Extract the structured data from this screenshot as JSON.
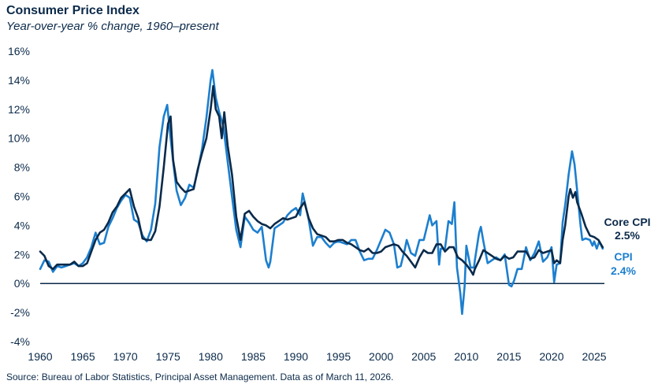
{
  "chart_data": {
    "type": "line",
    "title": "Consumer Price Index",
    "subtitle": "Year-over-year % change, 1960–present",
    "source": "Source: Bureau of Labor Statistics, Principal Asset Management. Data as of March 11, 2026.",
    "xlabel": "",
    "ylabel": "",
    "xlim": [
      1960,
      2026.2
    ],
    "ylim": [
      -4,
      16
    ],
    "x_ticks": [
      1960,
      1965,
      1970,
      1975,
      1980,
      1985,
      1990,
      1995,
      2000,
      2005,
      2010,
      2015,
      2020,
      2025
    ],
    "x_tick_labels": [
      "1960",
      "1965",
      "1970",
      "1975",
      "1980",
      "1985",
      "1990",
      "1995",
      "2000",
      "2005",
      "2010",
      "2015",
      "2020",
      "2025"
    ],
    "y_ticks": [
      -4,
      -2,
      0,
      2,
      4,
      6,
      8,
      10,
      12,
      14,
      16
    ],
    "y_tick_labels": [
      "-4%",
      "-2%",
      "0%",
      "2%",
      "4%",
      "6%",
      "8%",
      "10%",
      "12%",
      "14%",
      "16%"
    ],
    "grid": false,
    "colors": {
      "core": "#0b2a4a",
      "cpi": "#1c7fcf"
    },
    "series": [
      {
        "name": "Core CPI",
        "end_label": "Core CPI",
        "end_value_label": "2.5%",
        "color": "#0b2a4a",
        "points": [
          [
            1960.0,
            2.2
          ],
          [
            1960.5,
            1.9
          ],
          [
            1961.0,
            1.2
          ],
          [
            1961.5,
            1.0
          ],
          [
            1962.0,
            1.3
          ],
          [
            1962.5,
            1.3
          ],
          [
            1963.0,
            1.3
          ],
          [
            1963.5,
            1.3
          ],
          [
            1964.0,
            1.5
          ],
          [
            1964.5,
            1.2
          ],
          [
            1965.0,
            1.2
          ],
          [
            1965.5,
            1.4
          ],
          [
            1966.0,
            2.2
          ],
          [
            1966.5,
            3.0
          ],
          [
            1967.0,
            3.5
          ],
          [
            1967.5,
            3.7
          ],
          [
            1968.0,
            4.2
          ],
          [
            1968.5,
            4.9
          ],
          [
            1969.0,
            5.3
          ],
          [
            1969.5,
            5.9
          ],
          [
            1970.0,
            6.2
          ],
          [
            1970.5,
            6.5
          ],
          [
            1971.0,
            5.3
          ],
          [
            1971.5,
            4.5
          ],
          [
            1972.0,
            3.1
          ],
          [
            1972.5,
            3.0
          ],
          [
            1973.0,
            3.0
          ],
          [
            1973.5,
            3.6
          ],
          [
            1974.0,
            5.3
          ],
          [
            1974.5,
            8.0
          ],
          [
            1975.0,
            11.0
          ],
          [
            1975.3,
            11.5
          ],
          [
            1975.6,
            8.5
          ],
          [
            1976.0,
            7.0
          ],
          [
            1976.5,
            6.6
          ],
          [
            1977.0,
            6.3
          ],
          [
            1977.5,
            6.4
          ],
          [
            1978.0,
            6.5
          ],
          [
            1978.5,
            7.9
          ],
          [
            1979.0,
            9.0
          ],
          [
            1979.5,
            10.0
          ],
          [
            1980.0,
            12.0
          ],
          [
            1980.3,
            13.6
          ],
          [
            1980.6,
            12.0
          ],
          [
            1981.0,
            11.5
          ],
          [
            1981.3,
            10.0
          ],
          [
            1981.6,
            11.8
          ],
          [
            1982.0,
            9.5
          ],
          [
            1982.5,
            7.5
          ],
          [
            1983.0,
            4.6
          ],
          [
            1983.5,
            3.0
          ],
          [
            1984.0,
            4.8
          ],
          [
            1984.5,
            5.0
          ],
          [
            1985.0,
            4.6
          ],
          [
            1985.5,
            4.3
          ],
          [
            1986.0,
            4.1
          ],
          [
            1986.5,
            4.0
          ],
          [
            1987.0,
            3.8
          ],
          [
            1987.5,
            4.1
          ],
          [
            1988.0,
            4.3
          ],
          [
            1988.5,
            4.5
          ],
          [
            1989.0,
            4.4
          ],
          [
            1989.5,
            4.5
          ],
          [
            1990.0,
            4.6
          ],
          [
            1990.5,
            5.2
          ],
          [
            1991.0,
            5.6
          ],
          [
            1991.5,
            4.5
          ],
          [
            1992.0,
            3.8
          ],
          [
            1992.5,
            3.4
          ],
          [
            1993.0,
            3.3
          ],
          [
            1993.5,
            3.2
          ],
          [
            1994.0,
            2.9
          ],
          [
            1994.5,
            2.9
          ],
          [
            1995.0,
            3.0
          ],
          [
            1995.5,
            3.0
          ],
          [
            1996.0,
            2.8
          ],
          [
            1996.5,
            2.7
          ],
          [
            1997.0,
            2.5
          ],
          [
            1997.5,
            2.3
          ],
          [
            1998.0,
            2.2
          ],
          [
            1998.5,
            2.4
          ],
          [
            1999.0,
            2.1
          ],
          [
            1999.5,
            2.1
          ],
          [
            2000.0,
            2.2
          ],
          [
            2000.5,
            2.5
          ],
          [
            2001.0,
            2.6
          ],
          [
            2001.5,
            2.7
          ],
          [
            2002.0,
            2.6
          ],
          [
            2002.5,
            2.2
          ],
          [
            2003.0,
            1.9
          ],
          [
            2003.5,
            1.5
          ],
          [
            2004.0,
            1.1
          ],
          [
            2004.5,
            1.8
          ],
          [
            2005.0,
            2.3
          ],
          [
            2005.5,
            2.1
          ],
          [
            2006.0,
            2.1
          ],
          [
            2006.5,
            2.7
          ],
          [
            2007.0,
            2.7
          ],
          [
            2007.5,
            2.2
          ],
          [
            2008.0,
            2.5
          ],
          [
            2008.5,
            2.5
          ],
          [
            2009.0,
            1.8
          ],
          [
            2009.5,
            1.6
          ],
          [
            2010.0,
            1.3
          ],
          [
            2010.5,
            0.9
          ],
          [
            2010.8,
            0.6
          ],
          [
            2011.0,
            1.0
          ],
          [
            2011.5,
            1.6
          ],
          [
            2012.0,
            2.3
          ],
          [
            2012.5,
            2.1
          ],
          [
            2013.0,
            1.9
          ],
          [
            2013.5,
            1.7
          ],
          [
            2014.0,
            1.6
          ],
          [
            2014.5,
            1.9
          ],
          [
            2015.0,
            1.7
          ],
          [
            2015.5,
            1.8
          ],
          [
            2016.0,
            2.2
          ],
          [
            2016.5,
            2.2
          ],
          [
            2017.0,
            2.2
          ],
          [
            2017.5,
            1.7
          ],
          [
            2018.0,
            1.8
          ],
          [
            2018.5,
            2.3
          ],
          [
            2019.0,
            2.1
          ],
          [
            2019.5,
            2.2
          ],
          [
            2020.0,
            2.3
          ],
          [
            2020.3,
            1.4
          ],
          [
            2020.6,
            1.6
          ],
          [
            2021.0,
            1.4
          ],
          [
            2021.3,
            3.0
          ],
          [
            2021.6,
            4.0
          ],
          [
            2022.0,
            6.0
          ],
          [
            2022.2,
            6.5
          ],
          [
            2022.5,
            5.9
          ],
          [
            2022.8,
            6.3
          ],
          [
            2023.0,
            5.6
          ],
          [
            2023.5,
            4.8
          ],
          [
            2024.0,
            3.9
          ],
          [
            2024.5,
            3.3
          ],
          [
            2025.0,
            3.2
          ],
          [
            2025.5,
            3.0
          ],
          [
            2026.0,
            2.5
          ]
        ]
      },
      {
        "name": "CPI",
        "end_label": "CPI",
        "end_value_label": "2.4%",
        "color": "#1c7fcf",
        "points": [
          [
            1960.0,
            1.0
          ],
          [
            1960.5,
            1.6
          ],
          [
            1961.0,
            1.5
          ],
          [
            1961.5,
            0.8
          ],
          [
            1962.0,
            1.2
          ],
          [
            1962.5,
            1.1
          ],
          [
            1963.0,
            1.2
          ],
          [
            1963.5,
            1.3
          ],
          [
            1964.0,
            1.4
          ],
          [
            1964.5,
            1.2
          ],
          [
            1965.0,
            1.4
          ],
          [
            1965.5,
            1.8
          ],
          [
            1966.0,
            2.5
          ],
          [
            1966.5,
            3.5
          ],
          [
            1967.0,
            2.7
          ],
          [
            1967.5,
            2.8
          ],
          [
            1968.0,
            3.9
          ],
          [
            1968.5,
            4.5
          ],
          [
            1969.0,
            5.2
          ],
          [
            1969.5,
            5.7
          ],
          [
            1970.0,
            6.1
          ],
          [
            1970.5,
            5.9
          ],
          [
            1971.0,
            4.4
          ],
          [
            1971.5,
            4.2
          ],
          [
            1972.0,
            3.3
          ],
          [
            1972.5,
            2.9
          ],
          [
            1973.0,
            3.7
          ],
          [
            1973.5,
            5.5
          ],
          [
            1974.0,
            9.4
          ],
          [
            1974.5,
            11.5
          ],
          [
            1974.9,
            12.3
          ],
          [
            1975.3,
            10.0
          ],
          [
            1975.6,
            8.4
          ],
          [
            1976.0,
            6.4
          ],
          [
            1976.5,
            5.4
          ],
          [
            1977.0,
            5.9
          ],
          [
            1977.5,
            6.8
          ],
          [
            1978.0,
            6.6
          ],
          [
            1978.5,
            7.8
          ],
          [
            1979.0,
            9.3
          ],
          [
            1979.5,
            11.4
          ],
          [
            1980.0,
            14.0
          ],
          [
            1980.2,
            14.7
          ],
          [
            1980.6,
            12.8
          ],
          [
            1981.0,
            11.8
          ],
          [
            1981.5,
            10.8
          ],
          [
            1982.0,
            8.4
          ],
          [
            1982.5,
            6.0
          ],
          [
            1983.0,
            3.7
          ],
          [
            1983.5,
            2.5
          ],
          [
            1984.0,
            4.6
          ],
          [
            1984.5,
            4.2
          ],
          [
            1985.0,
            3.7
          ],
          [
            1985.5,
            3.5
          ],
          [
            1986.0,
            3.9
          ],
          [
            1986.5,
            1.6
          ],
          [
            1986.8,
            1.1
          ],
          [
            1987.0,
            1.5
          ],
          [
            1987.5,
            3.8
          ],
          [
            1988.0,
            4.0
          ],
          [
            1988.5,
            4.2
          ],
          [
            1989.0,
            4.7
          ],
          [
            1989.5,
            5.0
          ],
          [
            1990.0,
            5.2
          ],
          [
            1990.5,
            4.7
          ],
          [
            1990.8,
            6.2
          ],
          [
            1991.0,
            5.7
          ],
          [
            1991.5,
            4.4
          ],
          [
            1992.0,
            2.6
          ],
          [
            1992.5,
            3.2
          ],
          [
            1993.0,
            3.2
          ],
          [
            1993.5,
            2.8
          ],
          [
            1994.0,
            2.5
          ],
          [
            1994.5,
            2.8
          ],
          [
            1995.0,
            2.9
          ],
          [
            1995.5,
            2.8
          ],
          [
            1996.0,
            2.7
          ],
          [
            1996.5,
            3.0
          ],
          [
            1997.0,
            3.0
          ],
          [
            1997.5,
            2.2
          ],
          [
            1998.0,
            1.6
          ],
          [
            1998.5,
            1.7
          ],
          [
            1999.0,
            1.7
          ],
          [
            1999.5,
            2.3
          ],
          [
            2000.0,
            3.0
          ],
          [
            2000.5,
            3.7
          ],
          [
            2001.0,
            3.5
          ],
          [
            2001.5,
            2.7
          ],
          [
            2001.9,
            1.1
          ],
          [
            2002.3,
            1.2
          ],
          [
            2002.8,
            2.4
          ],
          [
            2003.0,
            3.0
          ],
          [
            2003.5,
            2.1
          ],
          [
            2004.0,
            1.9
          ],
          [
            2004.5,
            3.0
          ],
          [
            2005.0,
            3.0
          ],
          [
            2005.7,
            4.7
          ],
          [
            2006.0,
            4.0
          ],
          [
            2006.5,
            4.3
          ],
          [
            2006.8,
            1.3
          ],
          [
            2007.0,
            2.4
          ],
          [
            2007.5,
            2.4
          ],
          [
            2007.9,
            4.3
          ],
          [
            2008.3,
            4.1
          ],
          [
            2008.6,
            5.6
          ],
          [
            2008.9,
            1.1
          ],
          [
            2009.3,
            -0.7
          ],
          [
            2009.5,
            -2.1
          ],
          [
            2009.8,
            -0.2
          ],
          [
            2010.0,
            2.6
          ],
          [
            2010.5,
            1.1
          ],
          [
            2010.9,
            1.1
          ],
          [
            2011.0,
            1.6
          ],
          [
            2011.5,
            3.5
          ],
          [
            2011.7,
            3.9
          ],
          [
            2012.0,
            2.9
          ],
          [
            2012.5,
            1.4
          ],
          [
            2013.0,
            1.6
          ],
          [
            2013.5,
            1.8
          ],
          [
            2014.0,
            1.6
          ],
          [
            2014.5,
            2.0
          ],
          [
            2015.0,
            -0.1
          ],
          [
            2015.3,
            -0.2
          ],
          [
            2015.6,
            0.2
          ],
          [
            2016.0,
            1.0
          ],
          [
            2016.5,
            1.0
          ],
          [
            2017.0,
            2.5
          ],
          [
            2017.5,
            1.6
          ],
          [
            2018.0,
            2.1
          ],
          [
            2018.5,
            2.9
          ],
          [
            2019.0,
            1.5
          ],
          [
            2019.5,
            1.8
          ],
          [
            2020.0,
            2.5
          ],
          [
            2020.3,
            0.1
          ],
          [
            2020.6,
            1.3
          ],
          [
            2021.0,
            1.4
          ],
          [
            2021.3,
            4.2
          ],
          [
            2021.6,
            5.4
          ],
          [
            2022.0,
            7.5
          ],
          [
            2022.4,
            9.1
          ],
          [
            2022.7,
            8.2
          ],
          [
            2023.0,
            6.4
          ],
          [
            2023.4,
            4.0
          ],
          [
            2023.6,
            3.0
          ],
          [
            2024.0,
            3.1
          ],
          [
            2024.5,
            3.0
          ],
          [
            2024.8,
            2.6
          ],
          [
            2025.0,
            2.9
          ],
          [
            2025.3,
            2.4
          ],
          [
            2025.6,
            2.9
          ],
          [
            2026.0,
            2.4
          ]
        ]
      }
    ]
  }
}
